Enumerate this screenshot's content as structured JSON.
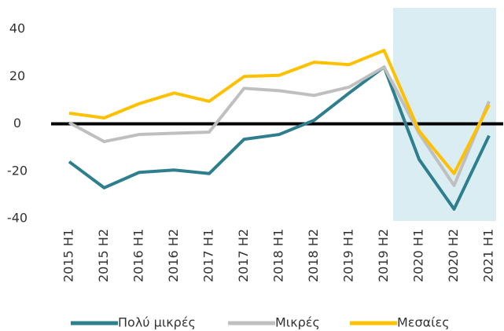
{
  "chart_data": {
    "type": "line",
    "categories": [
      "2015 H1",
      "2015 H2",
      "2016 H1",
      "2016 H2",
      "2017 H1",
      "2017 H2",
      "2018 H1",
      "2018 H2",
      "2019 H1",
      "2019 H2",
      "2020 H1",
      "2020 H2",
      "2021 H1"
    ],
    "series": [
      {
        "name": "Πολύ μικρές",
        "color": "#2e7f8e",
        "values": [
          -16,
          -27,
          -20.5,
          -19.5,
          -21,
          -6.5,
          -4.5,
          1.5,
          13,
          24,
          -15,
          -36,
          -5
        ]
      },
      {
        "name": "Μικρές",
        "color": "#bfbfbf",
        "values": [
          0.5,
          -7.5,
          -4.5,
          -4,
          -3.5,
          15,
          14,
          12,
          15.5,
          24,
          -4,
          -26,
          9.5
        ]
      },
      {
        "name": "Μεσαίες",
        "color": "#ffc000",
        "values": [
          4.5,
          2.5,
          8.5,
          13,
          9.5,
          20,
          20.5,
          26,
          25,
          31,
          -3,
          -21,
          8
        ]
      }
    ],
    "ylim": [
      -40,
      40
    ],
    "yticks": [
      -40,
      -20,
      0,
      20,
      40
    ],
    "grid": false,
    "legend": "bottom"
  }
}
